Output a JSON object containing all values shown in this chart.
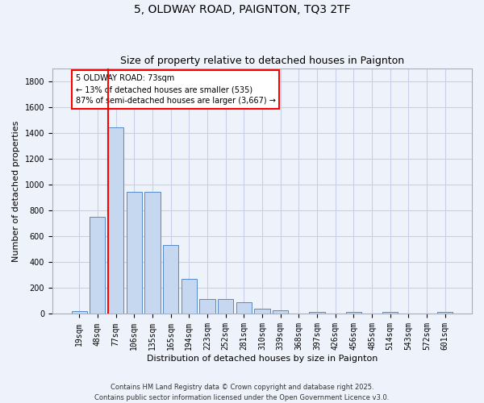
{
  "title": "5, OLDWAY ROAD, PAIGNTON, TQ3 2TF",
  "subtitle": "Size of property relative to detached houses in Paignton",
  "xlabel": "Distribution of detached houses by size in Paignton",
  "ylabel": "Number of detached properties",
  "categories": [
    "19sqm",
    "48sqm",
    "77sqm",
    "106sqm",
    "135sqm",
    "165sqm",
    "194sqm",
    "223sqm",
    "252sqm",
    "281sqm",
    "310sqm",
    "339sqm",
    "368sqm",
    "397sqm",
    "426sqm",
    "456sqm",
    "485sqm",
    "514sqm",
    "543sqm",
    "572sqm",
    "601sqm"
  ],
  "values": [
    20,
    750,
    1440,
    945,
    945,
    535,
    270,
    115,
    115,
    90,
    40,
    28,
    0,
    18,
    0,
    18,
    0,
    18,
    0,
    0,
    18
  ],
  "bar_color": "#c5d8f0",
  "bar_edge_color": "#5588c8",
  "vline_x_index": 2,
  "vline_color": "red",
  "annotation_text": "5 OLDWAY ROAD: 73sqm\n← 13% of detached houses are smaller (535)\n87% of semi-detached houses are larger (3,667) →",
  "annotation_box_color": "white",
  "annotation_box_edge": "red",
  "ylim": [
    0,
    1900
  ],
  "yticks": [
    0,
    200,
    400,
    600,
    800,
    1000,
    1200,
    1400,
    1600,
    1800
  ],
  "footnote": "Contains HM Land Registry data © Crown copyright and database right 2025.\nContains public sector information licensed under the Open Government Licence v3.0.",
  "background_color": "#eef2fb",
  "grid_color": "#c8cfe8",
  "title_fontsize": 10,
  "subtitle_fontsize": 9,
  "axis_label_fontsize": 8,
  "tick_fontsize": 7,
  "footnote_fontsize": 6
}
